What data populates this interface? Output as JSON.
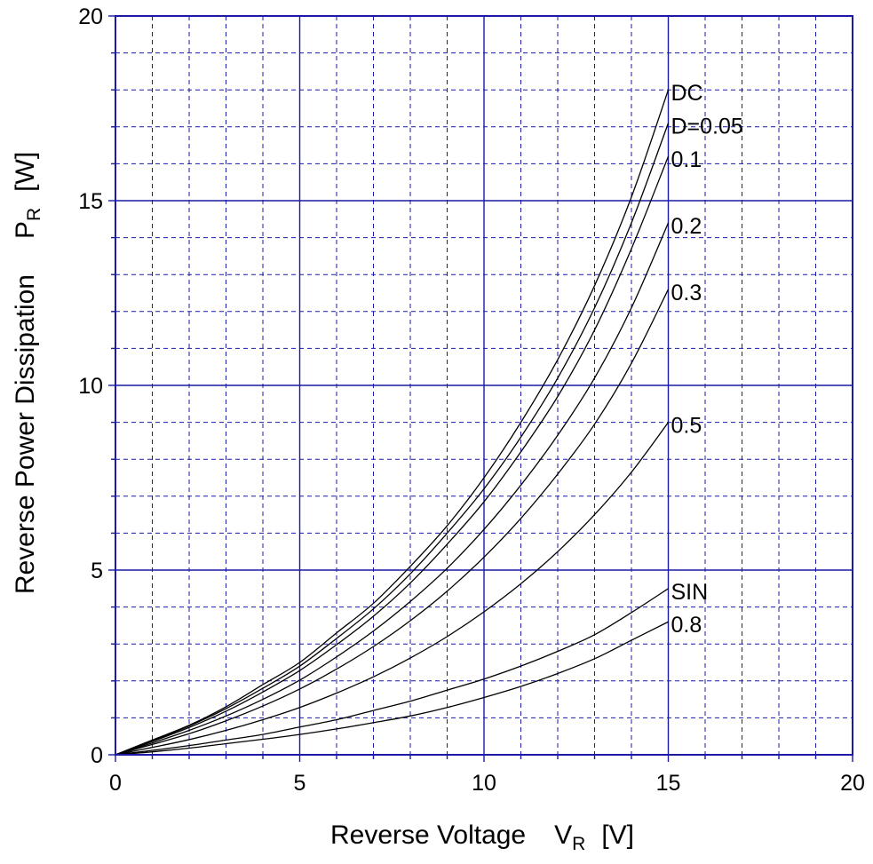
{
  "chart_data": {
    "type": "line",
    "xlabel": {
      "text": "Reverse Voltage",
      "symbol": "V",
      "subscript": "R",
      "unit": "[V]"
    },
    "ylabel": {
      "text": "Reverse Power Dissipation",
      "symbol": "P",
      "subscript": "R",
      "unit": "[W]"
    },
    "xlim": [
      0,
      20
    ],
    "ylim": [
      0,
      20
    ],
    "x_ticks": [
      0,
      5,
      10,
      15,
      20
    ],
    "y_ticks": [
      0,
      5,
      10,
      15,
      20
    ],
    "major_step": 5,
    "minor_step": 1,
    "grid": true,
    "colors": {
      "frame": "#1a1aa6",
      "grid": "#1a1aa6",
      "series": "#000000"
    },
    "series": [
      {
        "name": "DC",
        "x": [
          0,
          1,
          2,
          3,
          4,
          5,
          6,
          7,
          8,
          9,
          10,
          11,
          12,
          13,
          14,
          15
        ],
        "y": [
          0,
          0.4,
          0.8,
          1.3,
          1.9,
          2.5,
          3.3,
          4.1,
          5.1,
          6.2,
          7.5,
          9.0,
          10.7,
          12.7,
          15.1,
          18.0
        ]
      },
      {
        "name": "D=0.05",
        "x": [
          0,
          1,
          2,
          3,
          4,
          5,
          6,
          7,
          8,
          9,
          10,
          11,
          12,
          13,
          14,
          15
        ],
        "y": [
          0,
          0.38,
          0.78,
          1.25,
          1.8,
          2.4,
          3.15,
          3.95,
          4.9,
          6.0,
          7.2,
          8.6,
          10.2,
          12.1,
          14.4,
          17.1
        ]
      },
      {
        "name": "0.1",
        "x": [
          0,
          1,
          2,
          3,
          4,
          5,
          6,
          7,
          8,
          9,
          10,
          11,
          12,
          13,
          14,
          15
        ],
        "y": [
          0,
          0.36,
          0.74,
          1.18,
          1.7,
          2.28,
          2.98,
          3.75,
          4.65,
          5.7,
          6.85,
          8.2,
          9.7,
          11.5,
          13.7,
          16.2
        ]
      },
      {
        "name": "0.2",
        "x": [
          0,
          1,
          2,
          3,
          4,
          5,
          6,
          7,
          8,
          9,
          10,
          11,
          12,
          13,
          14,
          15
        ],
        "y": [
          0,
          0.32,
          0.66,
          1.05,
          1.5,
          2.02,
          2.65,
          3.35,
          4.15,
          5.05,
          6.1,
          7.3,
          8.65,
          10.2,
          12.1,
          14.4
        ]
      },
      {
        "name": "0.3",
        "x": [
          0,
          1,
          2,
          3,
          4,
          5,
          6,
          7,
          8,
          9,
          10,
          11,
          12,
          13,
          14,
          15
        ],
        "y": [
          0,
          0.28,
          0.57,
          0.92,
          1.32,
          1.78,
          2.32,
          2.93,
          3.63,
          4.43,
          5.35,
          6.4,
          7.6,
          8.95,
          10.6,
          12.6
        ]
      },
      {
        "name": "0.5",
        "x": [
          0,
          1,
          2,
          3,
          4,
          5,
          6,
          7,
          8,
          9,
          10,
          11,
          12,
          13,
          14,
          15
        ],
        "y": [
          0,
          0.2,
          0.41,
          0.66,
          0.95,
          1.28,
          1.67,
          2.11,
          2.62,
          3.2,
          3.87,
          4.63,
          5.5,
          6.5,
          7.65,
          9.0
        ]
      },
      {
        "name": "SIN",
        "x": [
          0,
          1,
          2,
          3,
          4,
          5,
          6,
          7,
          8,
          9,
          10,
          11,
          12,
          13,
          14,
          15
        ],
        "y": [
          0,
          0.12,
          0.25,
          0.4,
          0.55,
          0.75,
          0.95,
          1.2,
          1.45,
          1.75,
          2.05,
          2.4,
          2.8,
          3.25,
          3.85,
          4.5
        ]
      },
      {
        "name": "0.8",
        "x": [
          0,
          1,
          2,
          3,
          4,
          5,
          6,
          7,
          8,
          9,
          10,
          11,
          12,
          13,
          14,
          15
        ],
        "y": [
          0,
          0.08,
          0.18,
          0.3,
          0.42,
          0.55,
          0.7,
          0.87,
          1.05,
          1.28,
          1.55,
          1.85,
          2.2,
          2.6,
          3.1,
          3.6
        ]
      }
    ]
  }
}
